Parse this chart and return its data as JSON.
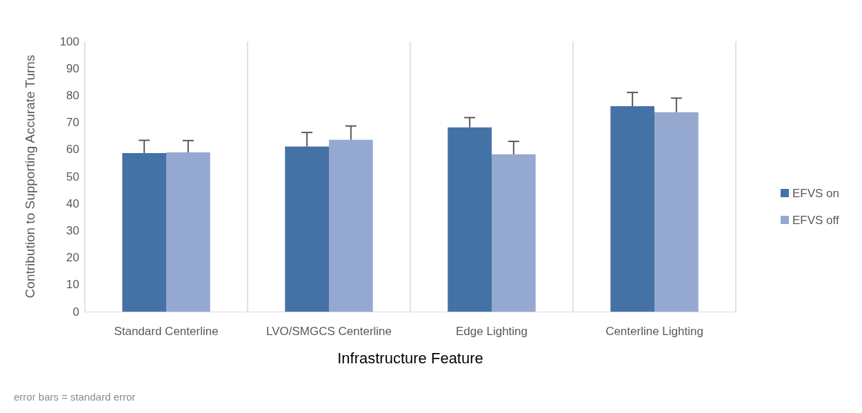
{
  "chart_data": {
    "type": "bar",
    "xlabel": "Infrastructure Feature",
    "ylabel": "Contribution to Supporting Accurate Turns",
    "categories": [
      "Standard Centerline",
      "LVO/SMGCS Centerline",
      "Edge Lighting",
      "Centerline Lighting"
    ],
    "series": [
      {
        "name": "EFVS on",
        "color": "#4472a6",
        "values": [
          58.7,
          61.1,
          68.2,
          76.0
        ],
        "errors": [
          [
            58.7,
            63.4
          ],
          [
            61.1,
            66.3
          ],
          [
            68.2,
            71.8
          ],
          [
            76.0,
            81.1
          ]
        ]
      },
      {
        "name": "EFVS off",
        "color": "#95a9d0",
        "values": [
          58.9,
          63.6,
          58.2,
          73.8
        ],
        "errors": [
          [
            58.9,
            63.3
          ],
          [
            63.6,
            68.7
          ],
          [
            58.2,
            63.0
          ],
          [
            73.8,
            79.0
          ]
        ]
      }
    ],
    "ylim": [
      0,
      100
    ],
    "yticks": [
      0,
      10,
      20,
      30,
      40,
      50,
      60,
      70,
      80,
      90,
      100
    ],
    "grid": "x",
    "legend": "right",
    "annotations": [
      "error bars = standard error"
    ]
  }
}
